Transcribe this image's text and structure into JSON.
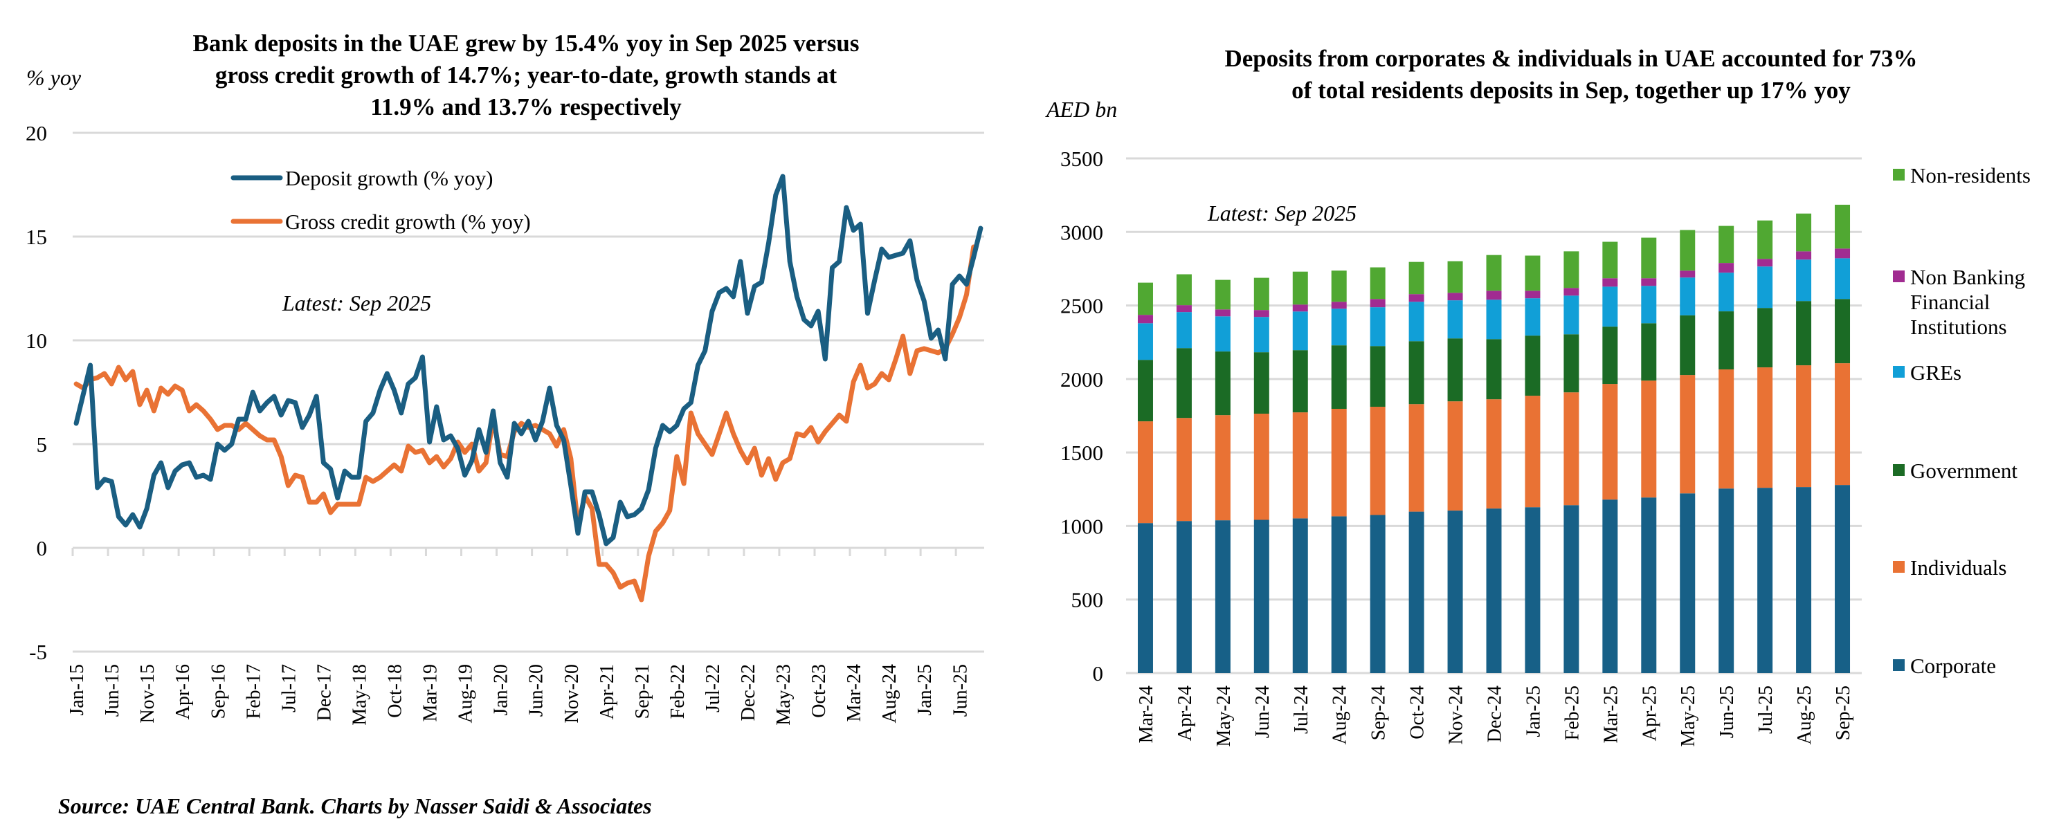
{
  "left_chart": {
    "title_lines": [
      "Bank deposits in the UAE grew by 15.4% yoy in Sep 2025 versus",
      "gross credit growth of 14.7%; year-to-date, growth stands at",
      "11.9% and 13.7% respectively"
    ],
    "unit_label": "% yoy",
    "annotation": "Latest: Sep 2025"
  },
  "right_chart": {
    "title_lines": [
      "Deposits from corporates & individuals in UAE accounted for 73%",
      "of total residents deposits in Sep, together up 17% yoy"
    ],
    "unit_label": "AED bn",
    "annotation": "Latest: Sep 2025"
  },
  "source": "Source: UAE Central Bank. Charts by Nasser Saidi & Associates",
  "chart_data": [
    {
      "type": "line",
      "title": "Bank deposits in the UAE grew by 15.4% yoy in Sep 2025 versus gross credit growth of 14.7%; year-to-date, growth stands at 11.9% and 13.7% respectively",
      "ylabel": "% yoy",
      "xlabel": "",
      "ylim": [
        -5,
        20
      ],
      "yticks": [
        -5,
        0,
        5,
        10,
        15,
        20
      ],
      "grid": true,
      "legend_position": "top-center",
      "x_start": "Jan-15",
      "x_end": "Sep-25",
      "frequency": "monthly",
      "xtick_labels": [
        "Jan-15",
        "Jun-15",
        "Nov-15",
        "Apr-16",
        "Sep-16",
        "Feb-17",
        "Jul-17",
        "Dec-17",
        "May-18",
        "Oct-18",
        "Mar-19",
        "Aug-19",
        "Jan-20",
        "Jun-20",
        "Nov-20",
        "Apr-21",
        "Sep-21",
        "Feb-22",
        "Jul-22",
        "Dec-22",
        "May-23",
        "Oct-23",
        "Mar-24",
        "Aug-24",
        "Jan-25",
        "Jun-25"
      ],
      "series": [
        {
          "name": "Deposit growth (% yoy)",
          "color": "#1A5E82",
          "values": [
            6.0,
            7.4,
            8.8,
            2.9,
            3.3,
            3.2,
            1.5,
            1.1,
            1.6,
            1.0,
            1.9,
            3.5,
            4.1,
            2.9,
            3.7,
            4.0,
            4.1,
            3.4,
            3.5,
            3.3,
            5.0,
            4.7,
            5.0,
            6.2,
            6.2,
            7.5,
            6.6,
            7.0,
            7.3,
            6.4,
            7.1,
            7.0,
            5.8,
            6.4,
            7.3,
            4.1,
            3.8,
            2.4,
            3.7,
            3.4,
            3.4,
            6.1,
            6.5,
            7.6,
            8.4,
            7.6,
            6.5,
            7.9,
            8.2,
            9.2,
            5.1,
            6.8,
            5.2,
            5.4,
            4.8,
            3.5,
            4.2,
            5.7,
            4.6,
            6.6,
            4.1,
            3.4,
            6.0,
            5.5,
            6.1,
            5.2,
            6.1,
            7.7,
            5.9,
            5.2,
            3.0,
            0.7,
            2.7,
            2.7,
            1.6,
            0.2,
            0.5,
            2.2,
            1.5,
            1.6,
            1.9,
            2.8,
            4.8,
            5.9,
            5.6,
            5.9,
            6.7,
            7.0,
            8.8,
            9.5,
            11.4,
            12.3,
            12.5,
            12.1,
            13.8,
            11.3,
            12.6,
            12.8,
            14.7,
            17.0,
            17.9,
            13.8,
            12.1,
            11.0,
            10.7,
            11.4,
            9.1,
            13.5,
            13.8,
            16.4,
            15.3,
            15.6,
            11.3,
            12.9,
            14.4,
            14.0,
            14.1,
            14.2,
            14.8,
            12.9,
            11.9,
            10.1,
            10.5,
            9.1,
            12.7,
            13.1,
            12.7,
            14.0,
            15.4
          ]
        },
        {
          "name": "Gross credit growth (% yoy)",
          "color": "#E97234",
          "values": [
            7.9,
            7.7,
            8.1,
            8.2,
            8.4,
            7.9,
            8.7,
            8.1,
            8.5,
            6.9,
            7.6,
            6.6,
            7.7,
            7.4,
            7.8,
            7.6,
            6.6,
            6.9,
            6.6,
            6.2,
            5.7,
            5.9,
            5.9,
            5.7,
            6.0,
            5.7,
            5.4,
            5.2,
            5.2,
            4.4,
            3.0,
            3.5,
            3.4,
            2.2,
            2.2,
            2.6,
            1.7,
            2.1,
            2.1,
            2.1,
            2.1,
            3.4,
            3.2,
            3.4,
            3.7,
            4.0,
            3.7,
            4.9,
            4.6,
            4.7,
            4.1,
            4.4,
            3.9,
            4.3,
            5.1,
            4.6,
            5.0,
            3.7,
            4.1,
            6.2,
            4.5,
            4.4,
            5.6,
            6.0,
            5.8,
            5.9,
            5.7,
            5.5,
            4.9,
            5.7,
            4.3,
            1.1,
            2.5,
            1.9,
            -0.8,
            -0.8,
            -1.2,
            -1.9,
            -1.7,
            -1.6,
            -2.5,
            -0.4,
            0.8,
            1.2,
            1.8,
            4.4,
            3.1,
            6.5,
            5.5,
            5.0,
            4.5,
            5.5,
            6.5,
            5.5,
            4.7,
            4.1,
            4.8,
            3.5,
            4.3,
            3.3,
            4.1,
            4.3,
            5.5,
            5.4,
            5.8,
            5.1,
            5.6,
            6.0,
            6.4,
            6.1,
            8.0,
            8.8,
            7.7,
            7.9,
            8.4,
            8.1,
            9.1,
            10.2,
            8.4,
            9.5,
            9.6,
            9.5,
            9.4,
            9.6,
            10.3,
            11.1,
            12.2,
            14.5
          ]
        }
      ]
    },
    {
      "type": "bar",
      "stacked": true,
      "title": "Deposits from corporates & individuals in UAE accounted for 73% of total residents deposits in Sep, together up 17% yoy",
      "ylabel": "AED bn",
      "xlabel": "",
      "ylim": [
        0,
        3500
      ],
      "yticks": [
        0,
        500,
        1000,
        1500,
        2000,
        2500,
        3000,
        3500
      ],
      "grid": true,
      "legend_position": "right",
      "categories": [
        "Mar-24",
        "Apr-24",
        "May-24",
        "Jun-24",
        "Jul-24",
        "Aug-24",
        "Sep-24",
        "Oct-24",
        "Nov-24",
        "Dec-24",
        "Jan-25",
        "Feb-25",
        "Mar-25",
        "Apr-25",
        "May-25",
        "Jun-25",
        "Jul-25",
        "Aug-25",
        "Sep-25"
      ],
      "series": [
        {
          "name": "Corporate",
          "color": "#176087",
          "values": [
            1020,
            1034,
            1039,
            1042,
            1052,
            1066,
            1075,
            1098,
            1105,
            1119,
            1128,
            1142,
            1180,
            1194,
            1222,
            1255,
            1260,
            1265,
            1279
          ]
        },
        {
          "name": "Individuals",
          "color": "#E97234",
          "values": [
            692,
            701,
            715,
            722,
            721,
            731,
            736,
            731,
            743,
            743,
            758,
            767,
            786,
            795,
            805,
            810,
            819,
            828,
            828
          ]
        },
        {
          "name": "Government",
          "color": "#1B6B25",
          "values": [
            418,
            475,
            433,
            418,
            423,
            432,
            413,
            428,
            428,
            409,
            409,
            395,
            390,
            390,
            406,
            395,
            404,
            437,
            437
          ]
        },
        {
          "name": "GREs",
          "color": "#119FD7",
          "values": [
            249,
            245,
            239,
            240,
            263,
            249,
            264,
            268,
            259,
            268,
            254,
            263,
            272,
            254,
            257,
            263,
            282,
            282,
            277
          ]
        },
        {
          "name": "Non Banking Financial Institutions",
          "color": "#A12C91",
          "values": [
            57,
            47,
            47,
            47,
            47,
            47,
            56,
            52,
            51,
            61,
            51,
            52,
            57,
            52,
            47,
            66,
            52,
            56,
            66
          ]
        },
        {
          "name": "Non-residents",
          "color": "#50A832",
          "values": [
            219,
            210,
            201,
            219,
            224,
            212,
            215,
            219,
            215,
            243,
            239,
            249,
            248,
            276,
            276,
            252,
            261,
            257,
            298
          ]
        }
      ],
      "legend_order": [
        "Non-residents",
        "Non Banking Financial Institutions",
        "GREs",
        "Government",
        "Individuals",
        "Corporate"
      ]
    }
  ]
}
